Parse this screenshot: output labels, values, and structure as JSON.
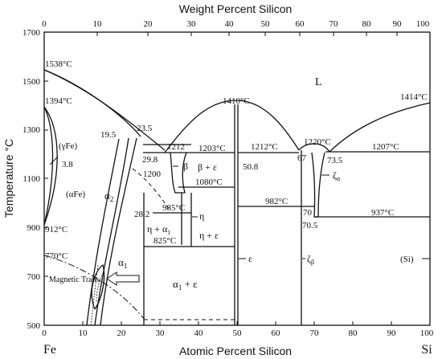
{
  "top_axis": {
    "title": "Weight Percent Silicon",
    "ticks": [
      "0",
      "10",
      "20",
      "30",
      "40",
      "50",
      "60",
      "70",
      "80",
      "90",
      "100"
    ]
  },
  "bottom_axis": {
    "title": "Atomic Percent Silicon",
    "ticks": [
      "0",
      "10",
      "20",
      "30",
      "40",
      "50",
      "60",
      "70",
      "80",
      "90",
      "100"
    ],
    "left_element": "Fe",
    "right_element": "Si"
  },
  "left_axis": {
    "title": "Temperature °C",
    "ticks": [
      "1700",
      "1500",
      "1300",
      "1100",
      "900",
      "700",
      "500"
    ]
  },
  "labels": {
    "t1538": "1538°C",
    "t1394": "1394°C",
    "t912": "912°C",
    "t770": "770°C",
    "gammaFe": "(γFe)",
    "v38": "3.8",
    "alphaFe": "(αFe)",
    "v195": "19.5",
    "v235": "23.5",
    "alpha2": "α",
    "alpha2_sub": "2",
    "v1212a": "1212",
    "v298": "29.8",
    "v1200": "1200",
    "beta": "β",
    "v282": "28.2",
    "t985": "985°C",
    "eta1": "η",
    "eta_alpha1": "η + α",
    "eta_alpha1_sub": "1",
    "t825": "825°C",
    "eta_eps": "η + ε",
    "alpha1": "α",
    "alpha1_sub": "1",
    "magnetic_trans": "Magnetic Trans.",
    "alpha1_eps": "α",
    "alpha1_eps_sub": "1",
    "alpha1_eps_rest": " + ε",
    "t1203": "1203°C",
    "beta_eps": "β + ε",
    "t1080": "1080°C",
    "t1410": "1410°C",
    "v508": "50.8",
    "eps": "ε",
    "t1212b": "1212°C",
    "v67": "67",
    "t982": "982°C",
    "zeta_beta": "ζ",
    "zeta_beta_sub": "β",
    "L": "L",
    "t1220": "1220°C",
    "v735": "73.5",
    "zeta_alpha": "ζ",
    "zeta_alpha_sub": "α",
    "v70": "70",
    "v705": "70.5",
    "t937": "937°C",
    "t1207": "1207°C",
    "t1414": "1414°C",
    "si": "(Si)"
  },
  "chart_data": {
    "type": "phase-diagram",
    "title": "",
    "xlabel": "Atomic Percent Silicon",
    "x2label": "Weight Percent Silicon",
    "ylabel": "Temperature °C",
    "xlim": [
      0,
      100
    ],
    "ylim": [
      500,
      1700
    ],
    "points": [
      {
        "label": "1538°C",
        "x": 0,
        "y": 1538
      },
      {
        "label": "1394°C",
        "x": 0,
        "y": 1394
      },
      {
        "label": "912°C",
        "x": 0,
        "y": 912
      },
      {
        "label": "770°C",
        "x": 0,
        "y": 770
      },
      {
        "label": "1410°C",
        "x": 50,
        "y": 1410
      },
      {
        "label": "1414°C",
        "x": 100,
        "y": 1414
      },
      {
        "label": "1220°C",
        "x": 72,
        "y": 1220
      },
      {
        "label": "1212°C",
        "x": 67,
        "y": 1212
      },
      {
        "label": "1207°C",
        "x": 73.5,
        "y": 1207
      },
      {
        "label": "1203°C",
        "x": 33,
        "y": 1203
      },
      {
        "label": "1080°C",
        "x": 33,
        "y": 1080
      },
      {
        "label": "985°C",
        "x": 28.2,
        "y": 985
      },
      {
        "label": "982°C",
        "x": 50.8,
        "y": 982
      },
      {
        "label": "937°C",
        "x": 70.5,
        "y": 937
      },
      {
        "label": "825°C",
        "x": 26,
        "y": 825
      }
    ]
  }
}
